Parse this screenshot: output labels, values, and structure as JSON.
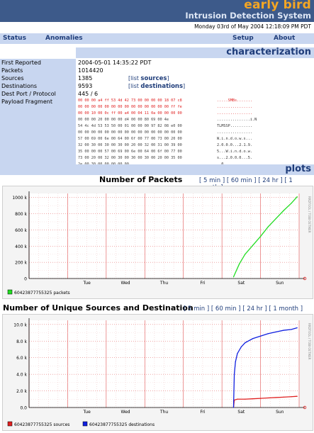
{
  "header": {
    "brand": "early bird",
    "subtitle": "Intrusion Detection System",
    "datetime": "Monday 03rd of May 2004 12:18:09 PM PDT"
  },
  "nav": {
    "status": "Status",
    "anomalies": "Anomalies",
    "setup": "Setup",
    "about": "About"
  },
  "characterization": {
    "section_title": "characterization",
    "rows": [
      {
        "label": "First Reported",
        "value": "2004-05-01 14:35:22 PDT"
      },
      {
        "label": "Packets",
        "value": "1014420"
      },
      {
        "label": "Sources",
        "value": "1385",
        "link_text": "sources",
        "link_prefix": "[list ",
        "link_suffix": "]"
      },
      {
        "label": "Destinations",
        "value": "9593",
        "link_text": "destinations",
        "link_prefix": "[list ",
        "link_suffix": "]"
      },
      {
        "label": "Dest Port / Protocol",
        "value": "445 / 6"
      },
      {
        "label": "Payload Fragment",
        "value": ""
      }
    ],
    "payload_hex": [
      "00 00 00 a4 ff 53 4d 42 73 00 00 00 00 18 07 c8",
      "00 00 00 00 00 00 00 00 00 00 00 00 00 00 ff fe",
      "00 00 10 00 0c ff 00 a4 00 04 11 0a 00 00 00 00",
      "00 00 00 20 00 00 00 d4 00 00 80 69 00 4e",
      "54 4c 4d 53 53 50 00 01 00 00 00 97 82 08 e0 00",
      "00 00 00 00 00 00 00 00 00 00 00 00 00 00 00 00",
      "57 00 69 00 6e 00 64 00 6f 00 77 00 73 00 20 00",
      "32 00 30 00 30 00 30 00 20 00 32 00 31 00 39 00",
      "35 00 00 00 57 00 69 00 6e 00 64 00 6f 00 77 00",
      "73 00 20 00 32 00 30 00 30 00 30 00 20 00 35 00",
      "2e 00 30 00 00 00 00 00"
    ],
    "payload_ascii": [
      ".....SMBs.......",
      "................",
      "................",
      "...............i.N",
      "TLMSSP..........",
      "................",
      "W.i.n.d.o.w.s...",
      "2.0.0.0...2.1.9.",
      "5...W.i.n.d.o.w.",
      "s...2.0.0.0...5.",
      "..0....."
    ]
  },
  "plots": {
    "section_title": "plots",
    "range_links": [
      "5 min",
      "60 min",
      "24 hr",
      "1 month"
    ]
  },
  "graph1": {
    "title": "Number of Packets",
    "side_text": "RRDTOOL / TOBI OETIKER",
    "legend": "60423877755325 packets",
    "colors": {
      "series": "#22dd22",
      "grid": "#e05050",
      "axis": "#000000"
    }
  },
  "graph2": {
    "title": "Number of Unique Sources and Destination",
    "side_text": "RRDTOOL / TOBI OETIKER",
    "legend_sources": "60423877755325 sources",
    "legend_destinations": "60423877755325 destinations",
    "colors": {
      "sources": "#e02020",
      "destinations": "#1020e0"
    }
  },
  "chart_data": [
    {
      "type": "line",
      "title": "Number of Packets",
      "xlabel": "",
      "ylabel": "",
      "x_ticks": [
        "Tue",
        "Wed",
        "Thu",
        "Fri",
        "Sat",
        "Sun"
      ],
      "y_ticks": [
        "0",
        "200 k",
        "400 k",
        "600 k",
        "800 k",
        "1000 k"
      ],
      "ylim": [
        0,
        1050000
      ],
      "grid": true,
      "series": [
        {
          "name": "60423877755325 packets",
          "color": "#22dd22",
          "x": [
            5.3,
            5.45,
            5.6,
            5.8,
            6.0,
            6.2,
            6.4,
            6.6,
            6.8,
            6.95
          ],
          "values": [
            20000,
            180000,
            300000,
            410000,
            520000,
            640000,
            740000,
            840000,
            930000,
            1010000
          ]
        }
      ]
    },
    {
      "type": "line",
      "title": "Number of Unique Sources and Destination",
      "xlabel": "",
      "ylabel": "",
      "x_ticks": [
        "Tue",
        "Wed",
        "Thu",
        "Fri",
        "Sat",
        "Sun"
      ],
      "y_ticks": [
        "0.0",
        "2.0 k",
        "4.0 k",
        "6.0 k",
        "8.0 k",
        "10.0 k"
      ],
      "ylim": [
        0,
        10500
      ],
      "grid": true,
      "series": [
        {
          "name": "60423877755325 sources",
          "color": "#e02020",
          "x": [
            5.3,
            5.32,
            5.4,
            5.6,
            5.8,
            6.0,
            6.2,
            6.4,
            6.6,
            6.8,
            6.95
          ],
          "values": [
            0,
            900,
            1000,
            1000,
            1050,
            1100,
            1150,
            1200,
            1250,
            1300,
            1350
          ]
        },
        {
          "name": "60423877755325 destinations",
          "color": "#1020e0",
          "x": [
            5.3,
            5.32,
            5.35,
            5.4,
            5.5,
            5.6,
            5.8,
            6.0,
            6.2,
            6.4,
            6.6,
            6.8,
            6.95
          ],
          "values": [
            0,
            4000,
            5500,
            6500,
            7300,
            7800,
            8300,
            8600,
            8900,
            9100,
            9300,
            9400,
            9600
          ]
        }
      ]
    }
  ]
}
